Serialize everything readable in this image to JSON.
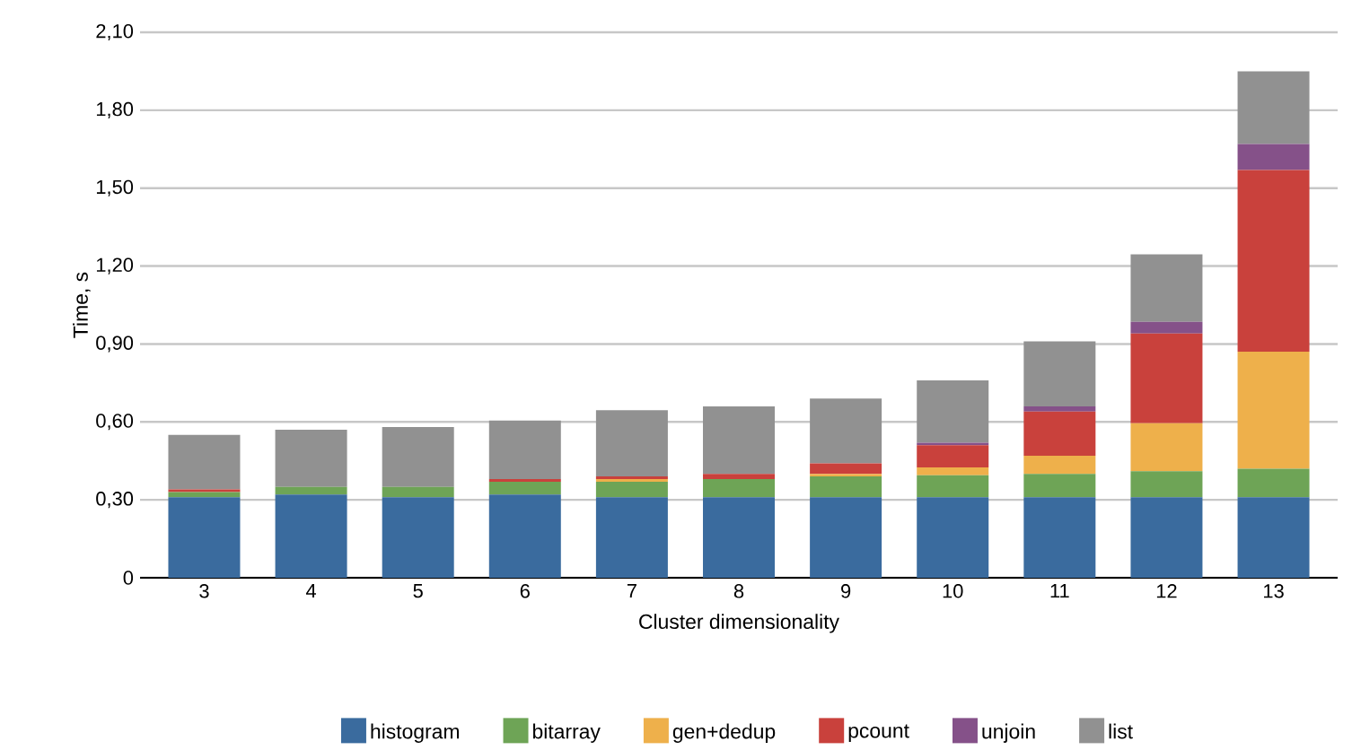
{
  "chart_data": {
    "type": "bar",
    "stacked": true,
    "xlabel": "Cluster dimensionality",
    "ylabel": "Time, s",
    "categories": [
      "3",
      "4",
      "5",
      "6",
      "7",
      "8",
      "9",
      "10",
      "11",
      "12",
      "13"
    ],
    "series": [
      {
        "name": "histogram",
        "color": "#3a6b9e",
        "values": [
          0.31,
          0.32,
          0.31,
          0.32,
          0.31,
          0.31,
          0.31,
          0.31,
          0.31,
          0.31,
          0.31
        ]
      },
      {
        "name": "bitarray",
        "color": "#6ea456",
        "values": [
          0.02,
          0.03,
          0.04,
          0.05,
          0.06,
          0.07,
          0.08,
          0.085,
          0.09,
          0.1,
          0.11
        ]
      },
      {
        "name": "gen+dedup",
        "color": "#eeb04b",
        "values": [
          0,
          0,
          0,
          0,
          0.01,
          0,
          0.01,
          0.03,
          0.07,
          0.185,
          0.45
        ]
      },
      {
        "name": "pcount",
        "color": "#c9413c",
        "values": [
          0.01,
          0,
          0,
          0.01,
          0.01,
          0.02,
          0.04,
          0.085,
          0.17,
          0.345,
          0.7
        ]
      },
      {
        "name": "unjoin",
        "color": "#855189",
        "values": [
          0,
          0,
          0,
          0,
          0,
          0,
          0,
          0.01,
          0.02,
          0.045,
          0.1
        ]
      },
      {
        "name": "list",
        "color": "#919191",
        "values": [
          0.21,
          0.22,
          0.23,
          0.225,
          0.255,
          0.26,
          0.25,
          0.24,
          0.25,
          0.26,
          0.28
        ]
      }
    ],
    "ylim": [
      0,
      2.1
    ],
    "yticks": [
      0,
      {
        "value": 0.3,
        "label": "0,30"
      },
      {
        "value": 0.6,
        "label": "0,60"
      },
      {
        "value": 0.9,
        "label": "0,90"
      },
      {
        "value": 1.2,
        "label": "1,20"
      },
      {
        "value": 1.5,
        "label": "1,50"
      },
      {
        "value": 1.8,
        "label": "1,80"
      },
      {
        "value": 2.1,
        "label": "2,10"
      }
    ],
    "grid": "y",
    "legend": "bottom"
  }
}
